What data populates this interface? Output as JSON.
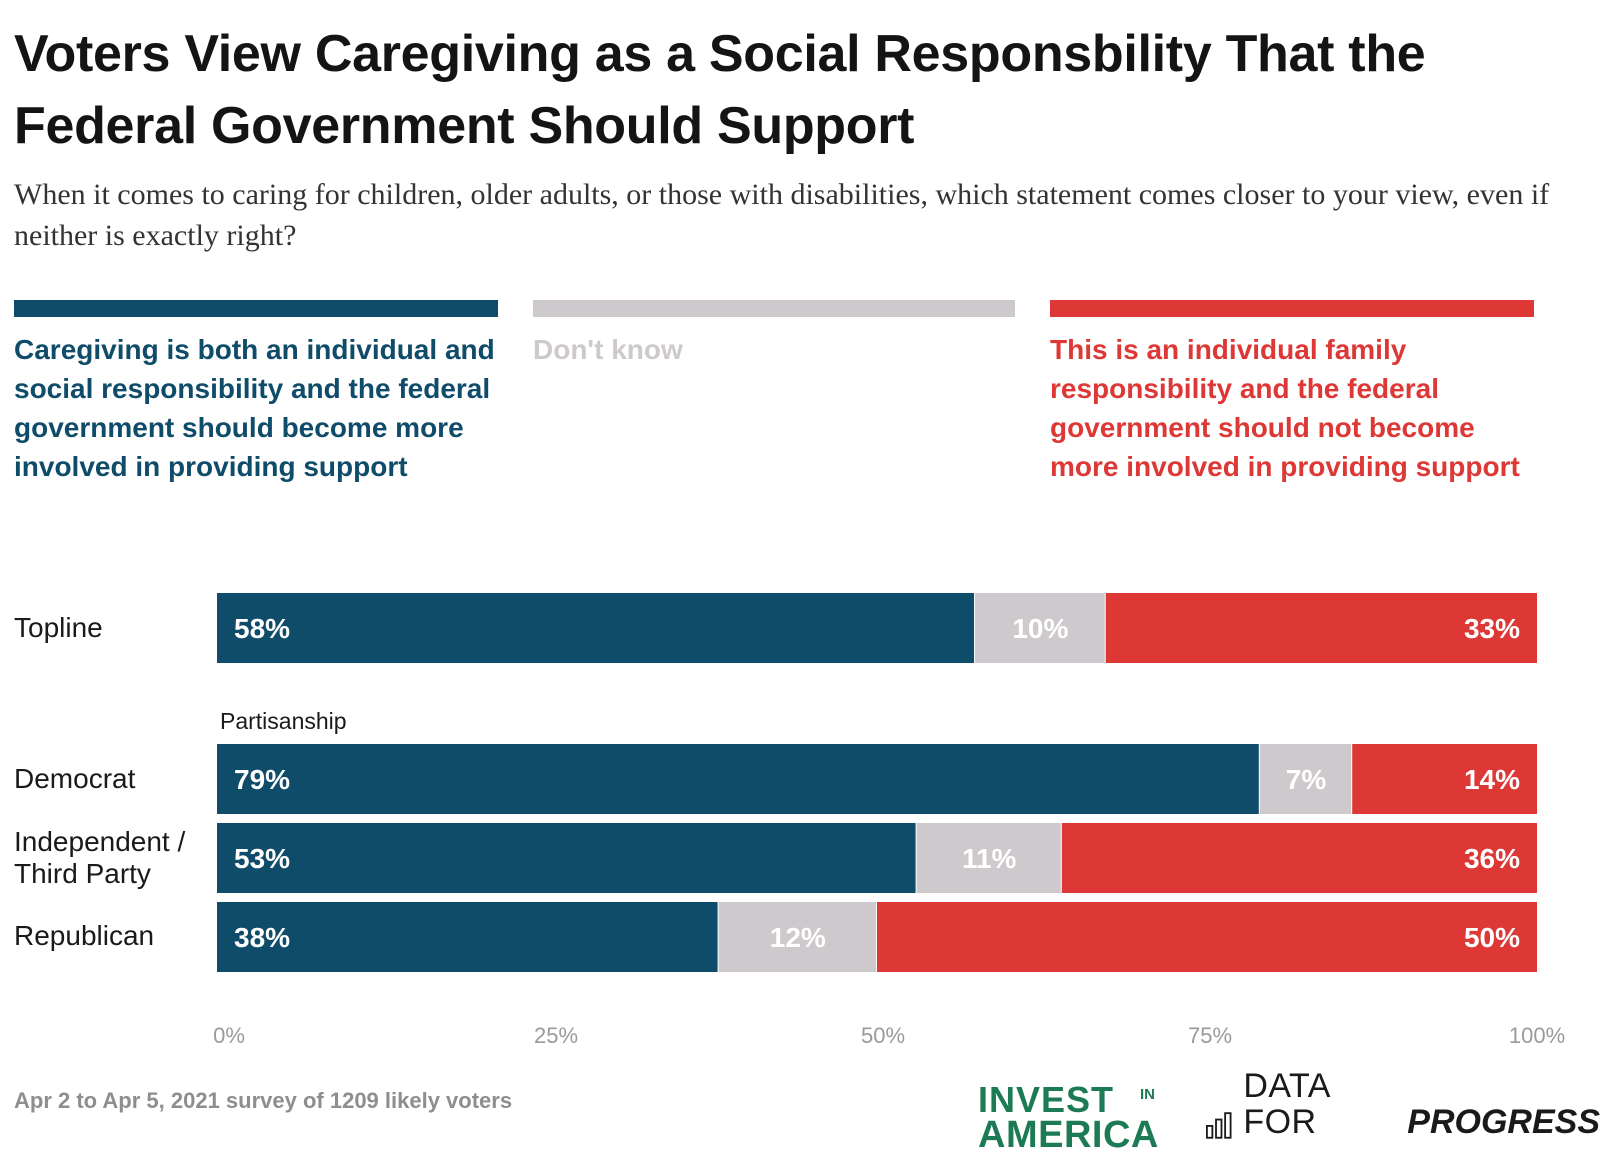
{
  "title": "Voters View Caregiving as a Social Responsbility That the Federal Government Should Support",
  "subtitle": "When it comes to caring for children, older adults, or those with disabilities, which statement comes closer to your view, even if neither is exactly right?",
  "colors": {
    "support": "#0f4c6a",
    "dont_know": "#cdc9cc",
    "oppose": "#dd3835"
  },
  "legend": [
    {
      "label": "Caregiving is both an individual and social responsibility and the federal government should become more involved in providing support",
      "color": "#0f4c6a"
    },
    {
      "label": "Don't know",
      "color": "#cdc9cc"
    },
    {
      "label": "This is an individual family responsibility and the federal government should not become more involved in providing support",
      "color": "#dd3835"
    }
  ],
  "chart_data": {
    "type": "bar",
    "orientation": "horizontal",
    "stacked": true,
    "categories": [
      "Topline",
      "Democrat",
      "Independent / Third Party",
      "Republican"
    ],
    "group_label": "Partisanship",
    "series": [
      {
        "name": "Caregiving is both an individual and social responsibility and the federal government should become more involved in providing support",
        "values": [
          58,
          79,
          53,
          38
        ],
        "labels": [
          "58%",
          "79%",
          "53%",
          "38%"
        ]
      },
      {
        "name": "Don't know",
        "values": [
          10,
          7,
          11,
          12
        ],
        "labels": [
          "10%",
          "7%",
          "11%",
          "12%"
        ]
      },
      {
        "name": "This is an individual family responsibility and the federal government should not become more involved in providing support",
        "values": [
          33,
          14,
          36,
          50
        ],
        "labels": [
          "33%",
          "14%",
          "36%",
          "50%"
        ]
      }
    ],
    "xlim": [
      0,
      100
    ],
    "x_ticks": [
      "0%",
      "25%",
      "50%",
      "75%",
      "100%"
    ],
    "legend_position": "top"
  },
  "footnote": "Apr 2 to Apr 5, 2021 survey of 1209 likely voters",
  "logos": {
    "invest_line1": "INVEST",
    "invest_in": "IN",
    "invest_line2": "AMERICA",
    "dfp_part1": "DATA FOR",
    "dfp_part2": "PROGRESS"
  }
}
